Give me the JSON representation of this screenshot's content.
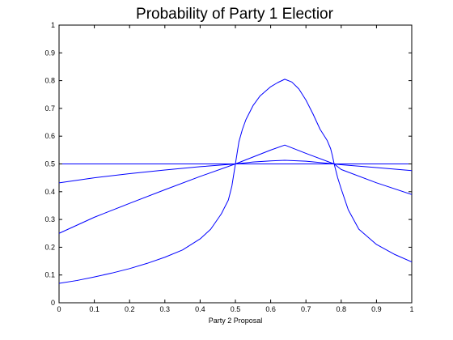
{
  "chart_data": {
    "type": "line",
    "title": "Probability of Party 1 Electior",
    "xlabel": "Party 2 Proposal",
    "ylabel": "",
    "xlim": [
      0,
      1
    ],
    "ylim": [
      0,
      1
    ],
    "xticks": [
      "0",
      "0.1",
      "0.2",
      "0.3",
      "0.4",
      "0.5",
      "0.6",
      "0.7",
      "0.8",
      "0.9",
      "1"
    ],
    "yticks": [
      "0",
      "0.1",
      "0.2",
      "0.3",
      "0.4",
      "0.5",
      "0.6",
      "0.7",
      "0.8",
      "0.9",
      "1"
    ],
    "grid": false,
    "legend": "none",
    "line_color": "#0000ff",
    "axis_color": "#000000",
    "series": [
      {
        "x": [
          0,
          0.1,
          0.2,
          0.3,
          0.4,
          0.5,
          0.6,
          0.64,
          0.7,
          0.78,
          0.8,
          0.9,
          1
        ],
        "y": [
          0.5,
          0.5,
          0.5,
          0.5,
          0.5,
          0.5,
          0.5,
          0.5,
          0.5,
          0.5,
          0.5,
          0.5,
          0.5
        ]
      },
      {
        "x": [
          0,
          0.1,
          0.2,
          0.3,
          0.4,
          0.5,
          0.55,
          0.6,
          0.64,
          0.7,
          0.78,
          0.8,
          0.9,
          1
        ],
        "y": [
          0.432,
          0.45,
          0.465,
          0.478,
          0.49,
          0.5,
          0.507,
          0.511,
          0.513,
          0.51,
          0.5,
          0.497,
          0.487,
          0.476
        ]
      },
      {
        "x": [
          0,
          0.1,
          0.2,
          0.3,
          0.4,
          0.5,
          0.6,
          0.64,
          0.7,
          0.78,
          0.8,
          0.9,
          1
        ],
        "y": [
          0.25,
          0.308,
          0.358,
          0.407,
          0.455,
          0.5,
          0.55,
          0.568,
          0.538,
          0.5,
          0.48,
          0.432,
          0.39
        ]
      },
      {
        "x": [
          0,
          0.05,
          0.1,
          0.15,
          0.2,
          0.25,
          0.3,
          0.35,
          0.4,
          0.43,
          0.46,
          0.48,
          0.49,
          0.5,
          0.51,
          0.52,
          0.53,
          0.55,
          0.57,
          0.6,
          0.62,
          0.64,
          0.66,
          0.68,
          0.7,
          0.72,
          0.74,
          0.76,
          0.77,
          0.775,
          0.78,
          0.79,
          0.8,
          0.82,
          0.85,
          0.9,
          0.95,
          1
        ],
        "y": [
          0.07,
          0.08,
          0.093,
          0.107,
          0.123,
          0.142,
          0.164,
          0.19,
          0.23,
          0.265,
          0.32,
          0.37,
          0.42,
          0.5,
          0.58,
          0.625,
          0.66,
          0.71,
          0.745,
          0.778,
          0.793,
          0.805,
          0.795,
          0.77,
          0.73,
          0.68,
          0.625,
          0.585,
          0.555,
          0.53,
          0.5,
          0.45,
          0.41,
          0.335,
          0.265,
          0.21,
          0.175,
          0.147
        ]
      }
    ]
  }
}
